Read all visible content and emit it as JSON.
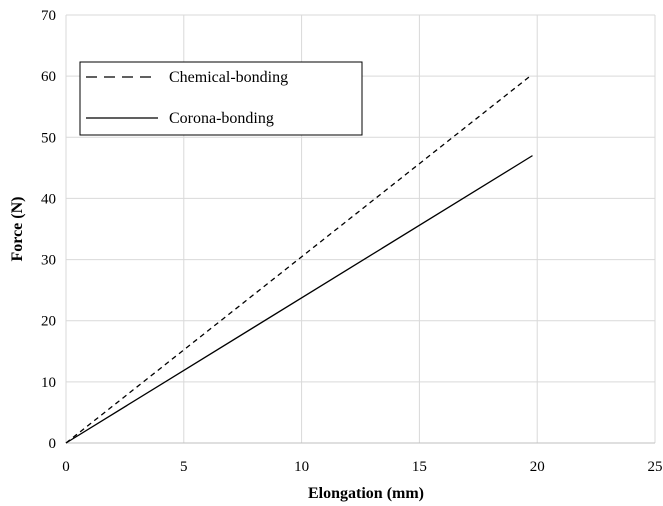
{
  "chart_data": {
    "type": "line",
    "title": "",
    "xlabel": "Elongation (mm)",
    "ylabel": "Force (N)",
    "xlim": [
      0,
      25
    ],
    "ylim": [
      0,
      70
    ],
    "xticks": [
      0,
      5,
      10,
      15,
      20,
      25
    ],
    "yticks": [
      0,
      10,
      20,
      30,
      40,
      50,
      60,
      70
    ],
    "xtick_labels": [
      "0",
      "5",
      "10",
      "15",
      "20",
      "25"
    ],
    "ytick_labels": [
      "0",
      "10",
      "20",
      "30",
      "40",
      "50",
      "60",
      "70"
    ],
    "grid": true,
    "legend_position": "top-left",
    "series": [
      {
        "name": "Chemical-bonding",
        "line_style": "dashed",
        "color": "#000000",
        "points": [
          [
            0,
            0
          ],
          [
            19.7,
            60
          ]
        ]
      },
      {
        "name": "Corona-bonding",
        "line_style": "solid",
        "color": "#000000",
        "points": [
          [
            0,
            0
          ],
          [
            19.8,
            47
          ]
        ]
      }
    ]
  }
}
